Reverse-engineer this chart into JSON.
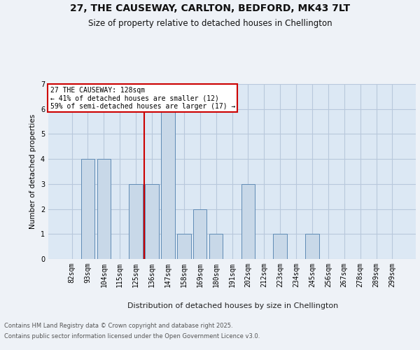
{
  "title_line1": "27, THE CAUSEWAY, CARLTON, BEDFORD, MK43 7LT",
  "title_line2": "Size of property relative to detached houses in Chellington",
  "xlabel": "Distribution of detached houses by size in Chellington",
  "ylabel": "Number of detached properties",
  "categories": [
    "82sqm",
    "93sqm",
    "104sqm",
    "115sqm",
    "125sqm",
    "136sqm",
    "147sqm",
    "158sqm",
    "169sqm",
    "180sqm",
    "191sqm",
    "202sqm",
    "212sqm",
    "223sqm",
    "234sqm",
    "245sqm",
    "256sqm",
    "267sqm",
    "278sqm",
    "289sqm",
    "299sqm"
  ],
  "values": [
    0,
    4,
    4,
    0,
    3,
    3,
    6,
    1,
    2,
    1,
    0,
    3,
    0,
    1,
    0,
    1,
    0,
    0,
    0,
    0,
    0
  ],
  "bar_color": "#c8d8e8",
  "bar_edge_color": "#5f8bb5",
  "subject_line_color": "#cc0000",
  "annotation_box_text": "27 THE CAUSEWAY: 128sqm\n← 41% of detached houses are smaller (12)\n59% of semi-detached houses are larger (17) →",
  "annotation_box_color": "#cc0000",
  "background_color": "#eef2f7",
  "plot_background_color": "#dce8f4",
  "grid_color": "#b8c8dc",
  "footer_line1": "Contains HM Land Registry data © Crown copyright and database right 2025.",
  "footer_line2": "Contains public sector information licensed under the Open Government Licence v3.0.",
  "ylim": [
    0,
    7
  ],
  "yticks": [
    0,
    1,
    2,
    3,
    4,
    5,
    6,
    7
  ]
}
